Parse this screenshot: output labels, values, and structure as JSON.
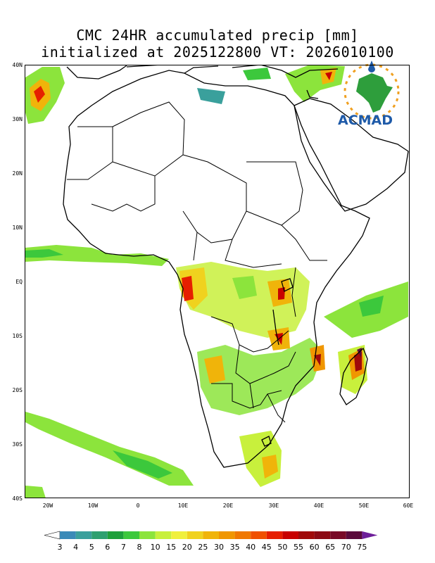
{
  "title": {
    "line1": "CMC 24HR accumulated precip [mm]",
    "line2": "initialized at 2025122800 VT: 2026010100"
  },
  "map": {
    "lat_labels": [
      "40N",
      "30N",
      "20N",
      "10N",
      "EQ",
      "10S",
      "20S",
      "30S",
      "40S"
    ],
    "lon_labels": [
      "20W",
      "10W",
      "0",
      "10E",
      "20E",
      "30E",
      "40E",
      "50E",
      "60E"
    ],
    "lon_range": [
      -25,
      60
    ],
    "lat_range": [
      -40,
      40
    ]
  },
  "colorbar": {
    "labels": [
      "3",
      "4",
      "5",
      "6",
      "7",
      "8",
      "10",
      "15",
      "20",
      "25",
      "30",
      "35",
      "40",
      "45",
      "50",
      "55",
      "60",
      "65",
      "70",
      "75"
    ],
    "colors": [
      "#ffffff",
      "#3a8ab8",
      "#3aa09c",
      "#2ea070",
      "#1ea03a",
      "#3cc83c",
      "#8ce43c",
      "#c8f03c",
      "#f0f03c",
      "#f0d21e",
      "#f0b40a",
      "#f09600",
      "#f07800",
      "#f05000",
      "#e61e00",
      "#c80000",
      "#a00a0a",
      "#8c0a14",
      "#780a28",
      "#5a0a3c",
      "#6e1e9a"
    ]
  },
  "logo": {
    "text": "ACMAD"
  }
}
